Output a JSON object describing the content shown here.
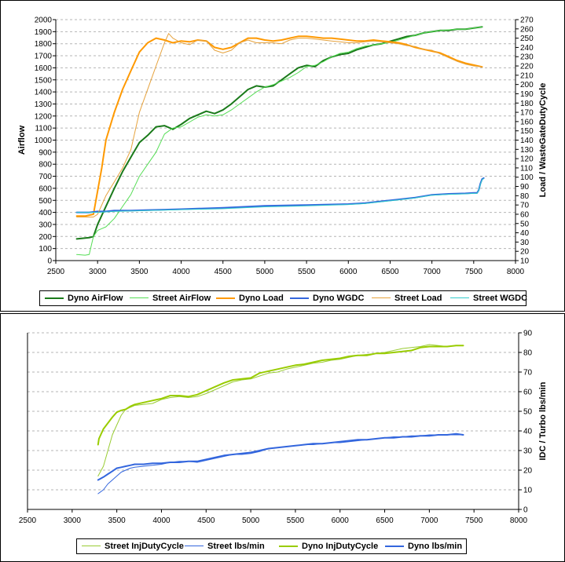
{
  "chart_data": [
    {
      "type": "line",
      "xlabel": "",
      "ylabel": "Airflow",
      "y2label": "Load / WasteGateDutyCycle",
      "xlim": [
        2500,
        8000
      ],
      "ylim": [
        0,
        2000
      ],
      "y2lim": [
        10,
        270
      ],
      "grid": "horizontal dashed",
      "legend_position": "bottom",
      "x_ticks": [
        "2500",
        "3000",
        "3500",
        "4000",
        "4500",
        "5000",
        "5500",
        "6000",
        "6500",
        "7000",
        "7500",
        "8000"
      ],
      "y_ticks": [
        "0",
        "100",
        "200",
        "300",
        "400",
        "500",
        "600",
        "700",
        "800",
        "900",
        "1000",
        "1100",
        "1200",
        "1300",
        "1400",
        "1500",
        "1600",
        "1700",
        "1800",
        "1900",
        "2000"
      ],
      "y2_ticks": [
        "10",
        "20",
        "30",
        "40",
        "50",
        "60",
        "70",
        "80",
        "90",
        "100",
        "110",
        "120",
        "130",
        "140",
        "150",
        "160",
        "170",
        "180",
        "190",
        "200",
        "210",
        "220",
        "230",
        "240",
        "250",
        "260",
        "270"
      ],
      "series": [
        {
          "name": "Dyno AirFlow",
          "color": "#1a7a1a",
          "width": 2,
          "axis": "left",
          "x": [
            2750,
            2900,
            2950,
            3000,
            3100,
            3200,
            3300,
            3400,
            3500,
            3600,
            3700,
            3800,
            3900,
            4000,
            4100,
            4200,
            4300,
            4400,
            4500,
            4600,
            4700,
            4800,
            4900,
            5000,
            5100,
            5200,
            5300,
            5400,
            5500,
            5600,
            5700,
            5800,
            5900,
            6000,
            6100,
            6200,
            6300,
            6400,
            6500,
            6600,
            6700,
            6800,
            6900,
            7000,
            7100,
            7200,
            7300,
            7400,
            7500,
            7600
          ],
          "y": [
            180,
            190,
            200,
            300,
            450,
            600,
            740,
            860,
            980,
            1040,
            1110,
            1120,
            1090,
            1130,
            1180,
            1210,
            1240,
            1220,
            1250,
            1300,
            1360,
            1420,
            1450,
            1440,
            1450,
            1500,
            1550,
            1600,
            1620,
            1610,
            1660,
            1690,
            1710,
            1720,
            1750,
            1770,
            1790,
            1800,
            1820,
            1840,
            1860,
            1870,
            1890,
            1900,
            1910,
            1910,
            1920,
            1920,
            1930,
            1940
          ]
        },
        {
          "name": "Street AirFlow",
          "color": "#55dd55",
          "width": 1,
          "axis": "left",
          "x": [
            2750,
            2850,
            2900,
            2950,
            3000,
            3100,
            3200,
            3300,
            3400,
            3500,
            3600,
            3700,
            3800,
            3900,
            4000,
            4100,
            4200,
            4300,
            4400,
            4500,
            4600,
            4700,
            4800,
            4900,
            5000,
            5100,
            5200,
            5300,
            5400,
            5500,
            5600,
            5700,
            5800,
            5900,
            6000,
            6100,
            6200,
            6300,
            6400,
            6500,
            6600,
            6700,
            6800,
            6900,
            7000,
            7100,
            7200,
            7300,
            7400,
            7500,
            7600
          ],
          "y": [
            50,
            45,
            50,
            200,
            250,
            280,
            350,
            450,
            550,
            700,
            800,
            900,
            1050,
            1100,
            1110,
            1150,
            1190,
            1210,
            1200,
            1210,
            1250,
            1300,
            1350,
            1400,
            1440,
            1460,
            1490,
            1520,
            1560,
            1610,
            1620,
            1650,
            1690,
            1720,
            1730,
            1760,
            1780,
            1790,
            1800,
            1810,
            1830,
            1850,
            1870,
            1890,
            1900,
            1910,
            1915,
            1920,
            1920,
            1930,
            1940
          ]
        },
        {
          "name": "Dyno Load",
          "color": "#ff9900",
          "width": 2,
          "axis": "right",
          "x": [
            2750,
            2850,
            2950,
            3000,
            3050,
            3100,
            3200,
            3300,
            3400,
            3500,
            3600,
            3700,
            3800,
            3900,
            4000,
            4100,
            4200,
            4300,
            4400,
            4500,
            4600,
            4700,
            4800,
            4900,
            5000,
            5100,
            5200,
            5300,
            5400,
            5500,
            5600,
            5700,
            5800,
            5900,
            6000,
            6100,
            6200,
            6300,
            6400,
            6500,
            6600,
            6700,
            6800,
            6900,
            7000,
            7100,
            7200,
            7300,
            7400,
            7500,
            7600
          ],
          "y": [
            58,
            58,
            60,
            85,
            110,
            140,
            170,
            195,
            215,
            235,
            245,
            250,
            248,
            245,
            247,
            246,
            248,
            247,
            240,
            238,
            240,
            245,
            250,
            250,
            248,
            247,
            248,
            250,
            252,
            252,
            251,
            250,
            250,
            249,
            248,
            247,
            247,
            248,
            247,
            246,
            245,
            243,
            240,
            238,
            236,
            234,
            230,
            226,
            223,
            221,
            219
          ]
        },
        {
          "name": "Dyno WGDC",
          "color": "#3366dd",
          "width": 2,
          "axis": "right",
          "x": [
            2750,
            2900,
            3000,
            3100,
            3200,
            3400,
            3600,
            3800,
            4000,
            4500,
            5000,
            5500,
            6000,
            6200,
            6400,
            6600,
            6800,
            7000,
            7200,
            7400,
            7500,
            7540,
            7560,
            7580,
            7600,
            7620
          ],
          "y": [
            62,
            62,
            63,
            63,
            64,
            64,
            64.5,
            65,
            65.5,
            67,
            69,
            70,
            71,
            72,
            74,
            76,
            78,
            81,
            82,
            82.5,
            83,
            83,
            86,
            93,
            98,
            99
          ]
        },
        {
          "name": "Street Load",
          "color": "#e6a23c",
          "width": 1,
          "axis": "right",
          "x": [
            2750,
            2850,
            2950,
            3000,
            3050,
            3100,
            3200,
            3300,
            3400,
            3450,
            3500,
            3600,
            3700,
            3800,
            3850,
            3900,
            4000,
            4100,
            4200,
            4300,
            4400,
            4500,
            4600,
            4700,
            4800,
            4900,
            5000,
            5100,
            5200,
            5300,
            5400,
            5500,
            5600,
            5700,
            5800,
            5900,
            6000,
            6100,
            6200,
            6300,
            6400,
            6500,
            6600,
            6700,
            6800,
            6900,
            7000,
            7100,
            7200,
            7300,
            7400,
            7500,
            7600
          ],
          "y": [
            57,
            57,
            57,
            60,
            70,
            80,
            95,
            110,
            130,
            150,
            170,
            195,
            220,
            245,
            255,
            250,
            245,
            243,
            248,
            247,
            237,
            234,
            237,
            245,
            248,
            245,
            245,
            245,
            244,
            248,
            250,
            250,
            249,
            248,
            247,
            246,
            245,
            245,
            246,
            247,
            246,
            245,
            244,
            242,
            241,
            238,
            237,
            233,
            229,
            225,
            222,
            220,
            219
          ]
        },
        {
          "name": "Street WGDC",
          "color": "#33cccc",
          "width": 1,
          "axis": "right",
          "x": [
            2750,
            3000,
            3200,
            3600,
            4000,
            4500,
            5000,
            5500,
            6000,
            6200,
            6400,
            6600,
            6800,
            7000,
            7200,
            7400,
            7500,
            7540,
            7560,
            7580,
            7600,
            7620
          ],
          "y": [
            62,
            62,
            63,
            64,
            65,
            66,
            68,
            69,
            70.5,
            71.5,
            73.5,
            75.5,
            77.5,
            80.5,
            81.5,
            82,
            82.5,
            82.5,
            85.5,
            92,
            97,
            98.5
          ]
        }
      ]
    },
    {
      "type": "line",
      "xlabel": "",
      "ylabel": "",
      "y2label": "IDC / Turbo lbs/min",
      "xlim": [
        2500,
        8000
      ],
      "y2lim": [
        0,
        90
      ],
      "grid": "horizontal dashed",
      "legend_position": "bottom",
      "x_ticks": [
        "2500",
        "3000",
        "3500",
        "4000",
        "4500",
        "5000",
        "5500",
        "6000",
        "6500",
        "7000",
        "7500",
        "8000"
      ],
      "y2_ticks": [
        "0",
        "10",
        "20",
        "30",
        "40",
        "50",
        "60",
        "70",
        "80",
        "90"
      ],
      "series": [
        {
          "name": "Street InjDutyCycle",
          "color": "#99cc33",
          "width": 1,
          "axis": "right",
          "x": [
            3290,
            3350,
            3400,
            3450,
            3500,
            3550,
            3600,
            3650,
            3700,
            3800,
            3900,
            4000,
            4100,
            4200,
            4300,
            4400,
            4500,
            4600,
            4700,
            4800,
            4900,
            5000,
            5100,
            5200,
            5300,
            5400,
            5500,
            5600,
            5700,
            5800,
            5900,
            6000,
            6100,
            6200,
            6300,
            6400,
            6500,
            6600,
            6700,
            6800,
            6900,
            7000,
            7100,
            7200,
            7300,
            7380
          ],
          "y": [
            17,
            22,
            30,
            38,
            43,
            48,
            51,
            52,
            53,
            53.5,
            54,
            56,
            57,
            57.5,
            57,
            57.5,
            59,
            61,
            63,
            65,
            66,
            66.5,
            68,
            69.5,
            70,
            71.5,
            72.5,
            73.5,
            74.5,
            75,
            76,
            76.5,
            77.5,
            78.5,
            79,
            79.5,
            80,
            81,
            82,
            82.5,
            83,
            84,
            83.5,
            83,
            83.5,
            83.5
          ]
        },
        {
          "name": "Street lbs/min",
          "color": "#3366dd",
          "width": 1,
          "axis": "right",
          "x": [
            3290,
            3350,
            3400,
            3450,
            3500,
            3550,
            3600,
            3650,
            3700,
            3800,
            3900,
            4000,
            4100,
            4200,
            4300,
            4400,
            4500,
            4600,
            4700,
            4800,
            4900,
            5000,
            5100,
            5200,
            5300,
            5400,
            5500,
            5600,
            5700,
            5800,
            5900,
            6000,
            6100,
            6200,
            6300,
            6400,
            6500,
            6600,
            6700,
            6800,
            6900,
            7000,
            7100,
            7200,
            7300,
            7380
          ],
          "y": [
            8,
            10,
            13,
            15,
            17,
            19,
            20,
            21,
            21.5,
            22,
            22.5,
            23,
            24,
            24.5,
            24.5,
            24,
            25,
            26,
            27,
            28,
            28,
            28.5,
            29.5,
            31,
            31.5,
            32,
            32.5,
            33,
            33,
            33.5,
            34,
            34,
            34.5,
            35,
            35.5,
            36,
            36.5,
            37,
            37,
            37.5,
            37.5,
            38,
            38,
            38,
            38,
            38
          ]
        },
        {
          "name": "Dyno InjDutyCycle",
          "color": "#99cc00",
          "width": 2,
          "axis": "right",
          "x": [
            3290,
            3300,
            3350,
            3400,
            3450,
            3500,
            3550,
            3600,
            3650,
            3700,
            3800,
            3900,
            4000,
            4100,
            4200,
            4300,
            4400,
            4500,
            4600,
            4700,
            4800,
            4900,
            5000,
            5100,
            5200,
            5300,
            5400,
            5500,
            5600,
            5700,
            5800,
            5900,
            6000,
            6100,
            6200,
            6300,
            6400,
            6500,
            6600,
            6700,
            6800,
            6900,
            7000,
            7100,
            7200,
            7300,
            7380
          ],
          "y": [
            33,
            36,
            41,
            44,
            47,
            49.5,
            50.5,
            51,
            52.5,
            53.5,
            54.5,
            55.5,
            56.5,
            58,
            58,
            57.5,
            58.5,
            60.5,
            62.5,
            64.5,
            66,
            66.5,
            67,
            69.5,
            70.5,
            71.5,
            72.5,
            73.5,
            74,
            75,
            76,
            76.5,
            77,
            78,
            78.5,
            78.5,
            79.5,
            79.5,
            80,
            80.5,
            81,
            82.5,
            83,
            83,
            83,
            83.5,
            83.5
          ]
        },
        {
          "name": "Dyno lbs/min",
          "color": "#3366dd",
          "width": 2,
          "axis": "right",
          "x": [
            3290,
            3350,
            3400,
            3450,
            3500,
            3550,
            3600,
            3650,
            3700,
            3800,
            3900,
            4000,
            4100,
            4200,
            4300,
            4400,
            4500,
            4600,
            4700,
            4800,
            4900,
            5000,
            5100,
            5200,
            5300,
            5400,
            5500,
            5600,
            5700,
            5800,
            5900,
            6000,
            6100,
            6200,
            6300,
            6400,
            6500,
            6600,
            6700,
            6800,
            6900,
            7000,
            7100,
            7200,
            7300,
            7380
          ],
          "y": [
            15,
            16.5,
            18,
            19.5,
            21,
            21.5,
            22,
            22.5,
            23,
            23,
            23.5,
            23.5,
            24,
            24,
            24.5,
            24.5,
            25.5,
            26.5,
            27.5,
            28,
            28.5,
            29,
            30,
            31,
            31.5,
            32,
            32.5,
            33,
            33.5,
            33.5,
            34,
            34.5,
            35,
            35.5,
            35.5,
            36,
            36.5,
            36.5,
            37,
            37,
            37.5,
            37.5,
            38,
            38,
            38.5,
            38
          ]
        }
      ]
    }
  ]
}
